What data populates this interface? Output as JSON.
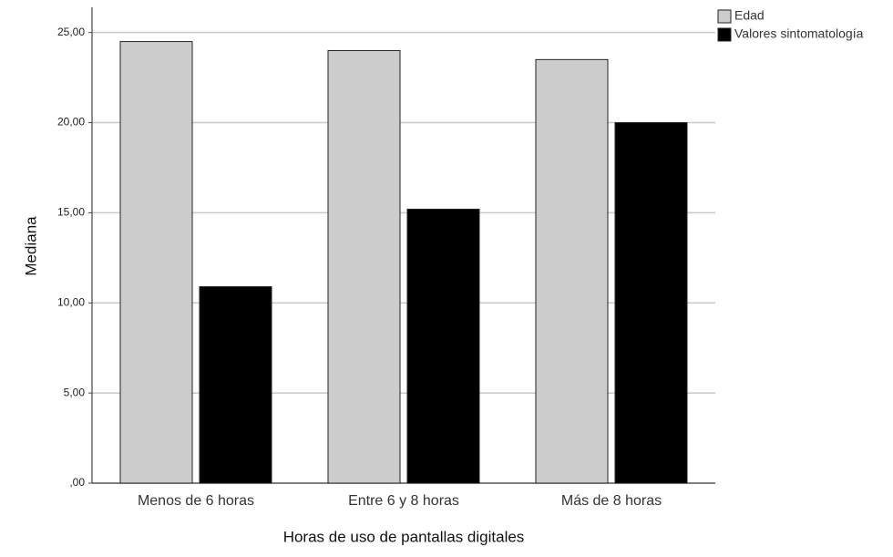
{
  "chart_data": {
    "type": "bar",
    "x_label": "Horas de uso de pantallas digitales",
    "y_label": "Mediana",
    "categories": [
      "Menos de 6 horas",
      "Entre 6 y 8 horas",
      "Más de 8 horas"
    ],
    "series": [
      {
        "name": "Edad",
        "color": "#cccccc",
        "values": [
          24.5,
          24.0,
          23.5
        ]
      },
      {
        "name": "Valores sintomatología",
        "color": "#000000",
        "values": [
          10.9,
          15.2,
          20.0
        ]
      }
    ],
    "ylim": [
      0,
      26.4
    ],
    "yticks": [
      {
        "value": 0,
        "label": ",00"
      },
      {
        "value": 5,
        "label": "5,00"
      },
      {
        "value": 10,
        "label": "10,00"
      },
      {
        "value": 15,
        "label": "15,00"
      },
      {
        "value": 20,
        "label": "20,00"
      },
      {
        "value": 25,
        "label": "25,00"
      }
    ],
    "grid": true,
    "legend": "top-right"
  }
}
